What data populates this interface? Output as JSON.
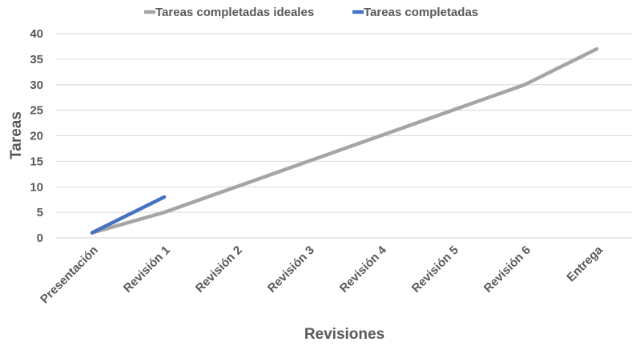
{
  "chart_data": {
    "type": "line",
    "categories": [
      "Presentación",
      "Revisión 1",
      "Revisión 2",
      "Revisión 3",
      "Revisión 4",
      "Revisión 5",
      "Revisión 6",
      "Entrega"
    ],
    "series": [
      {
        "name": "Tareas completadas ideales",
        "color": "#a5a5a5",
        "values": [
          1,
          5,
          10,
          15,
          20,
          25,
          30,
          37
        ]
      },
      {
        "name": "Tareas completadas",
        "color": "#4472c4",
        "values": [
          1,
          8,
          null,
          null,
          null,
          null,
          null,
          null
        ]
      }
    ],
    "xlabel": "Revisiones",
    "ylabel": "Tareas",
    "ylim": [
      0,
      40
    ],
    "yticks": [
      0,
      5,
      10,
      15,
      20,
      25,
      30,
      35,
      40
    ],
    "grid": true,
    "legend": "top"
  }
}
